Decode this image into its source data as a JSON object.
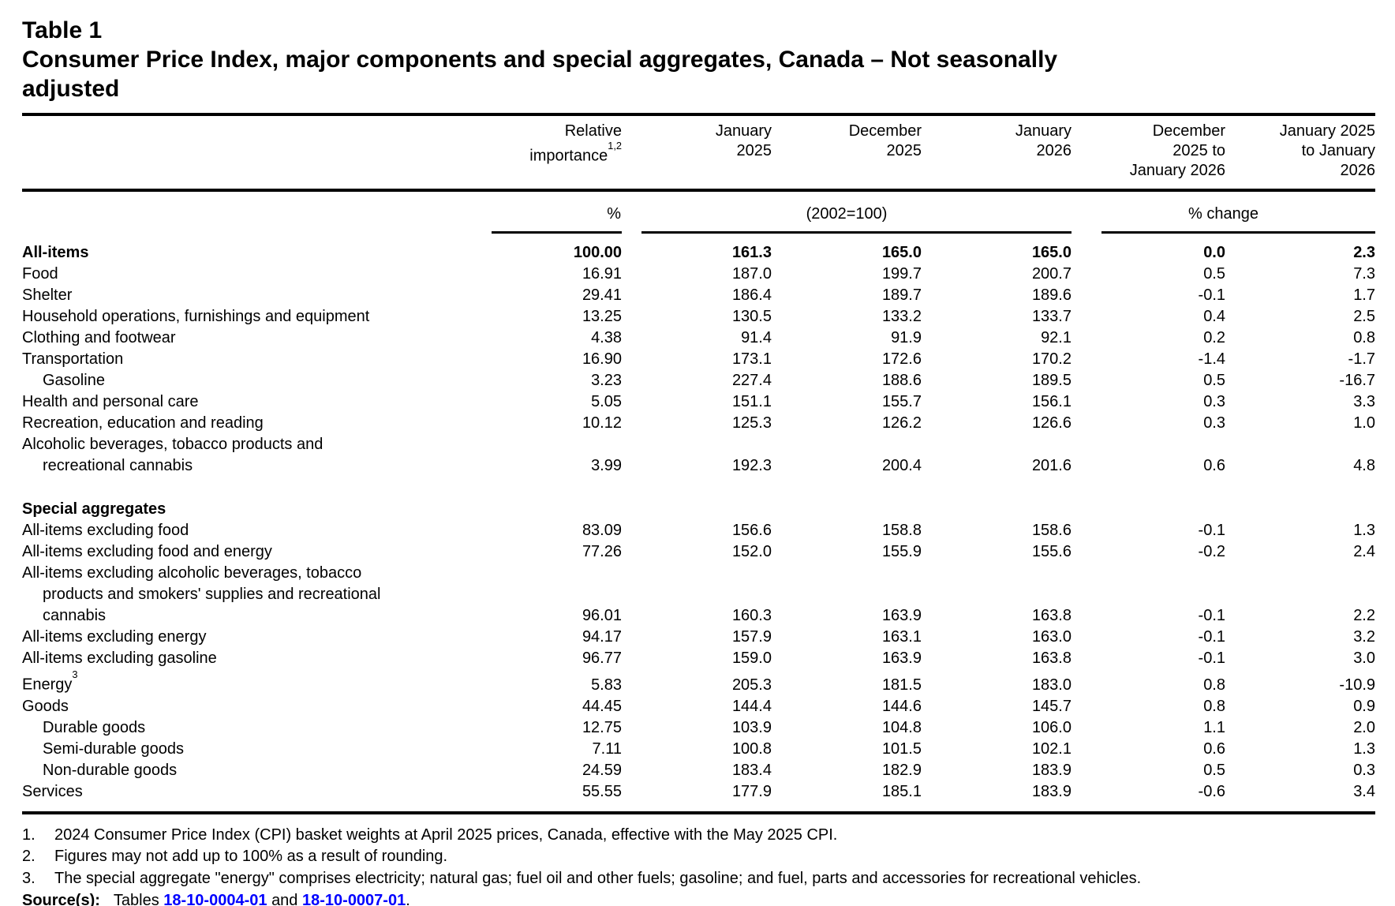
{
  "title": {
    "table_number": "Table 1",
    "main": "Consumer Price Index, major components and special aggregates, Canada – Not seasonally\nadjusted"
  },
  "table": {
    "columns": [
      {
        "lines": [
          "Relative",
          "importance"
        ],
        "sup": "1,2"
      },
      {
        "lines": [
          "January",
          "2025"
        ]
      },
      {
        "lines": [
          "December",
          "2025"
        ]
      },
      {
        "lines": [
          "January",
          "2026"
        ]
      },
      {
        "lines": [
          "December",
          "2025 to",
          "January 2026"
        ]
      },
      {
        "lines": [
          "January 2025",
          "to January",
          "2026"
        ]
      }
    ],
    "units": {
      "relative": "%",
      "index": "(2002=100)",
      "change": "% change"
    },
    "rows": [
      {
        "label": "All-items",
        "style": "bold",
        "values": [
          "100.00",
          "161.3",
          "165.0",
          "165.0",
          "0.0",
          "2.3"
        ]
      },
      {
        "label": "Food",
        "values": [
          "16.91",
          "187.0",
          "199.7",
          "200.7",
          "0.5",
          "7.3"
        ]
      },
      {
        "label": "Shelter",
        "values": [
          "29.41",
          "186.4",
          "189.7",
          "189.6",
          "-0.1",
          "1.7"
        ]
      },
      {
        "label": "Household operations, furnishings and equipment",
        "values": [
          "13.25",
          "130.5",
          "133.2",
          "133.7",
          "0.4",
          "2.5"
        ]
      },
      {
        "label": "Clothing and footwear",
        "values": [
          "4.38",
          "91.4",
          "91.9",
          "92.1",
          "0.2",
          "0.8"
        ]
      },
      {
        "label": "Transportation",
        "values": [
          "16.90",
          "173.1",
          "172.6",
          "170.2",
          "-1.4",
          "-1.7"
        ]
      },
      {
        "label": "Gasoline",
        "style": "indent",
        "values": [
          "3.23",
          "227.4",
          "188.6",
          "189.5",
          "0.5",
          "-16.7"
        ]
      },
      {
        "label": "Health and personal care",
        "values": [
          "5.05",
          "151.1",
          "155.7",
          "156.1",
          "0.3",
          "3.3"
        ]
      },
      {
        "label": "Recreation, education and reading",
        "values": [
          "10.12",
          "125.3",
          "126.2",
          "126.6",
          "0.3",
          "1.0"
        ]
      },
      {
        "label": "Alcoholic beverages, tobacco products and\nrecreational cannabis",
        "values": [
          "3.99",
          "192.3",
          "200.4",
          "201.6",
          "0.6",
          "4.8"
        ]
      },
      {
        "label": "",
        "style": "spacer",
        "values": []
      },
      {
        "label": "Special aggregates",
        "style": "section",
        "values": []
      },
      {
        "label": "All-items excluding food",
        "values": [
          "83.09",
          "156.6",
          "158.8",
          "158.6",
          "-0.1",
          "1.3"
        ]
      },
      {
        "label": "All-items excluding food and energy",
        "values": [
          "77.26",
          "152.0",
          "155.9",
          "155.6",
          "-0.2",
          "2.4"
        ]
      },
      {
        "label": "All-items excluding alcoholic beverages, tobacco\nproducts and smokers' supplies and recreational\ncannabis",
        "values": [
          "96.01",
          "160.3",
          "163.9",
          "163.8",
          "-0.1",
          "2.2"
        ]
      },
      {
        "label": "All-items excluding energy",
        "values": [
          "94.17",
          "157.9",
          "163.1",
          "163.0",
          "-0.1",
          "3.2"
        ]
      },
      {
        "label": "All-items excluding gasoline",
        "values": [
          "96.77",
          "159.0",
          "163.9",
          "163.8",
          "-0.1",
          "3.0"
        ]
      },
      {
        "label": "Energy",
        "sup": "3",
        "style": "gap",
        "values": [
          "5.83",
          "205.3",
          "181.5",
          "183.0",
          "0.8",
          "-10.9"
        ]
      },
      {
        "label": "Goods",
        "values": [
          "44.45",
          "144.4",
          "144.6",
          "145.7",
          "0.8",
          "0.9"
        ]
      },
      {
        "label": "Durable goods",
        "style": "indent",
        "values": [
          "12.75",
          "103.9",
          "104.8",
          "106.0",
          "1.1",
          "2.0"
        ]
      },
      {
        "label": "Semi-durable goods",
        "style": "indent",
        "values": [
          "7.11",
          "100.8",
          "101.5",
          "102.1",
          "0.6",
          "1.3"
        ]
      },
      {
        "label": "Non-durable goods",
        "style": "indent",
        "values": [
          "24.59",
          "183.4",
          "182.9",
          "183.9",
          "0.5",
          "0.3"
        ]
      },
      {
        "label": "Services",
        "values": [
          "55.55",
          "177.9",
          "185.1",
          "183.9",
          "-0.6",
          "3.4"
        ]
      }
    ]
  },
  "footnotes": [
    {
      "num": "1.",
      "text": "2024 Consumer Price Index (CPI) basket weights at April 2025 prices, Canada, effective with the May 2025 CPI."
    },
    {
      "num": "2.",
      "text": "Figures may not add up to 100% as a result of rounding."
    },
    {
      "num": "3.",
      "text": "The special aggregate \"energy\" comprises electricity; natural gas; fuel oil and other fuels; gasoline; and fuel, parts and accessories for recreational vehicles."
    }
  ],
  "source": {
    "label": "Source(s):",
    "prefix": "Tables",
    "link1": "18-10-0004-01",
    "conjunction": "and",
    "link2": "18-10-0007-01",
    "suffix": ".",
    "link_color": "#0000ff"
  }
}
